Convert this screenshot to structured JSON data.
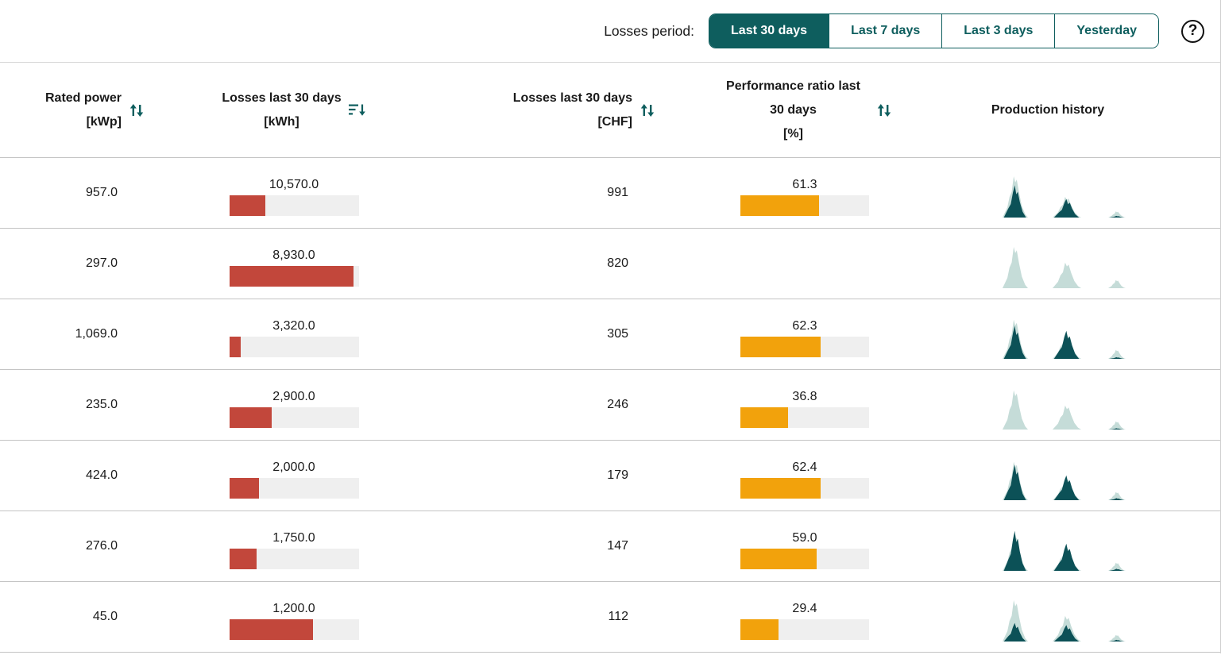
{
  "toolbar": {
    "label": "Losses period:",
    "buttons": [
      {
        "label": "Last 30 days",
        "selected": true
      },
      {
        "label": "Last 7 days",
        "selected": false
      },
      {
        "label": "Last 3 days",
        "selected": false
      },
      {
        "label": "Yesterday",
        "selected": false
      }
    ],
    "help_icon": "?"
  },
  "columns": [
    {
      "title": "Rated power",
      "unit": "[kWp]",
      "sort": "sortable"
    },
    {
      "title": "Losses last 30 days",
      "unit": "[kWh]",
      "sort": "desc"
    },
    {
      "title": "Losses last 30 days",
      "unit": "[CHF]",
      "sort": "sortable"
    },
    {
      "title": "Performance ratio last 30 days",
      "unit": "[%]",
      "sort": "sortable"
    },
    {
      "title": "Production history",
      "unit": "",
      "sort": "none"
    }
  ],
  "rows": [
    {
      "rated_power": "957.0",
      "losses_kwh": "10,570.0",
      "losses_fill": 28,
      "losses_chf": "991",
      "pr": "61.3",
      "pr_fill": 61.3,
      "spark": {
        "light": [
          1.0,
          0.5,
          0.15
        ],
        "dark": [
          0.78,
          0.45,
          0.04
        ]
      }
    },
    {
      "rated_power": "297.0",
      "losses_kwh": "8,930.0",
      "losses_fill": 96,
      "losses_chf": "820",
      "pr": null,
      "pr_fill": null,
      "spark": {
        "light": [
          1.0,
          0.62,
          0.2
        ],
        "dark": [
          0,
          0,
          0
        ]
      }
    },
    {
      "rated_power": "1,069.0",
      "losses_kwh": "3,320.0",
      "losses_fill": 9,
      "losses_chf": "305",
      "pr": "62.3",
      "pr_fill": 62.3,
      "spark": {
        "light": [
          0.95,
          0.6,
          0.22
        ],
        "dark": [
          0.8,
          0.68,
          0.04
        ]
      }
    },
    {
      "rated_power": "235.0",
      "losses_kwh": "2,900.0",
      "losses_fill": 33,
      "losses_chf": "246",
      "pr": "36.8",
      "pr_fill": 36.8,
      "spark": {
        "light": [
          0.95,
          0.58,
          0.2
        ],
        "dark": [
          0,
          0,
          0.03
        ]
      }
    },
    {
      "rated_power": "424.0",
      "losses_kwh": "2,000.0",
      "losses_fill": 23,
      "losses_chf": "179",
      "pr": "62.4",
      "pr_fill": 62.4,
      "spark": {
        "light": [
          0.93,
          0.55,
          0.2
        ],
        "dark": [
          0.86,
          0.6,
          0.05
        ]
      }
    },
    {
      "rated_power": "276.0",
      "losses_kwh": "1,750.0",
      "losses_fill": 21,
      "losses_chf": "147",
      "pr": "59.0",
      "pr_fill": 59.0,
      "spark": {
        "light": [
          0.88,
          0.58,
          0.2
        ],
        "dark": [
          0.97,
          0.66,
          0.05
        ]
      }
    },
    {
      "rated_power": "45.0",
      "losses_kwh": "1,200.0",
      "losses_fill": 65,
      "losses_chf": "112",
      "pr": "29.4",
      "pr_fill": 29.4,
      "spark": {
        "light": [
          1.0,
          0.62,
          0.16
        ],
        "dark": [
          0.45,
          0.4,
          0.04
        ]
      }
    }
  ],
  "colors": {
    "teal": "#0e5e5e",
    "red_bar": "#c2473b",
    "orange_bar": "#f2a20c",
    "bar_track": "#efefef",
    "spark_dark": "#0c5157",
    "spark_light": "#c5dcd8",
    "separator": "#c4c4c4",
    "text": "#1a1a1a"
  }
}
